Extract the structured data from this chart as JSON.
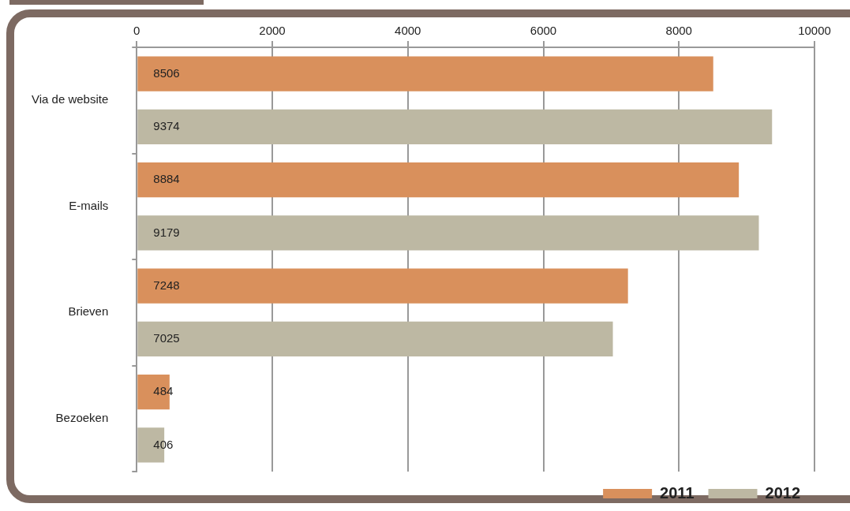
{
  "chart_data": {
    "type": "bar",
    "orientation": "horizontal",
    "categories": [
      "Via de website",
      "E-mails",
      "Brieven",
      "Bezoeken"
    ],
    "series": [
      {
        "name": "2011",
        "color": "#d9905c",
        "values": [
          8506,
          8884,
          7248,
          484
        ]
      },
      {
        "name": "2012",
        "color": "#bdb8a3",
        "values": [
          9374,
          9179,
          7025,
          406
        ]
      }
    ],
    "xlim": [
      0,
      10000
    ],
    "xticks": [
      0,
      2000,
      4000,
      6000,
      8000,
      10000
    ],
    "grid": "x",
    "legend": "bottom right",
    "data_labels": true
  }
}
